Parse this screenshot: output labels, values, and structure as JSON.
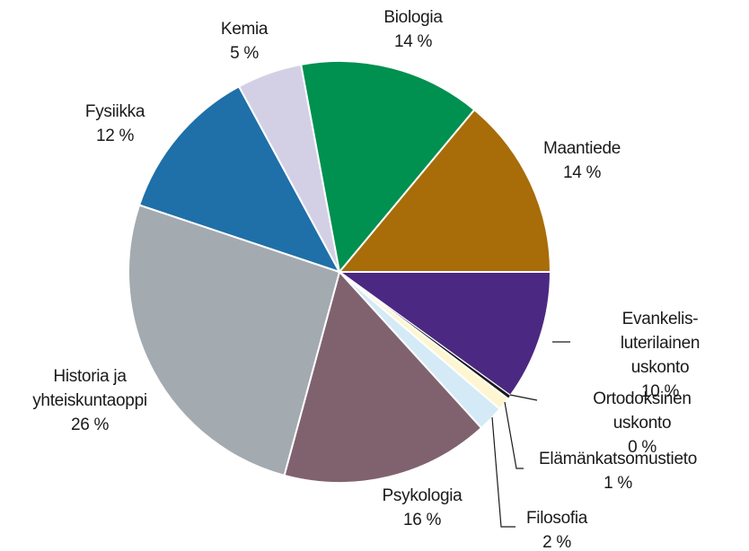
{
  "chart_data": {
    "type": "pie",
    "categories": [
      "Evankelis-luterilainen\nuskonto",
      "Ortodoksinen uskonto",
      "Elämänkatsomustieto",
      "Filosofia",
      "Psykologia",
      "Historia ja\nyhteiskuntaoppi",
      "Fysiikka",
      "Kemia",
      "Biologia",
      "Maantiede"
    ],
    "values": [
      10,
      0.3,
      1,
      2,
      16,
      26,
      12,
      5,
      14,
      14
    ],
    "value_labels": [
      "10 %",
      "0 %",
      "1 %",
      "2 %",
      "16 %",
      "26 %",
      "12 %",
      "5 %",
      "14 %",
      "14 %"
    ],
    "colors": [
      "#4b2882",
      "#1a1a1a",
      "#fdf6d0",
      "#d4eaf7",
      "#80626f",
      "#a3aab0",
      "#1f6fa8",
      "#d3d0e6",
      "#00904f",
      "#a86c08"
    ]
  }
}
